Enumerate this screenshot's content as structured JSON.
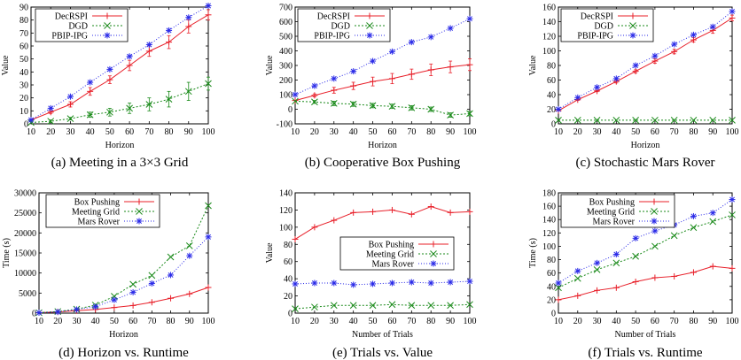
{
  "chart_data": [
    {
      "type": "line",
      "caption": "(a) Meeting in a 3×3 Grid",
      "xlabel": "Horizon",
      "ylabel": "Value",
      "xlim": [
        10,
        100
      ],
      "ylim": [
        0,
        90
      ],
      "xticks": [
        10,
        20,
        30,
        40,
        50,
        60,
        70,
        80,
        90,
        100
      ],
      "yticks": [
        0,
        10,
        20,
        30,
        40,
        50,
        60,
        70,
        80,
        90
      ],
      "grid": false,
      "legend": "top-left",
      "x": [
        10,
        20,
        30,
        40,
        50,
        60,
        70,
        80,
        90,
        100
      ],
      "series": [
        {
          "name": "DecRSPI",
          "color": "#e8202a",
          "marker": "plus",
          "dash": "",
          "values": [
            3,
            9,
            15,
            25,
            34,
            45,
            56,
            63,
            75,
            84
          ],
          "error": [
            0,
            1,
            2,
            3,
            3,
            4,
            4,
            5,
            5,
            4
          ]
        },
        {
          "name": "DGD",
          "color": "#1a8a1a",
          "marker": "x",
          "dash": "2,2",
          "values": [
            1,
            2,
            4,
            7,
            9,
            12,
            15,
            19,
            25,
            31
          ],
          "error": [
            0,
            1,
            1,
            2,
            3,
            4,
            5,
            6,
            7,
            5
          ]
        },
        {
          "name": "PBIP-IPG",
          "color": "#2a2ae8",
          "marker": "star",
          "dash": "1,2",
          "values": [
            3,
            12,
            21,
            32,
            42,
            52,
            61,
            72,
            82,
            91
          ],
          "error": [
            0,
            0,
            0,
            0,
            0,
            0,
            0,
            0,
            0,
            0
          ]
        }
      ]
    },
    {
      "type": "line",
      "caption": "(b) Cooperative Box Pushing",
      "xlabel": "Horizon",
      "ylabel": "Value",
      "xlim": [
        10,
        100
      ],
      "ylim": [
        -100,
        700
      ],
      "xticks": [
        10,
        20,
        30,
        40,
        50,
        60,
        70,
        80,
        90,
        100
      ],
      "yticks": [
        -100,
        0,
        100,
        200,
        300,
        400,
        500,
        600,
        700
      ],
      "grid": false,
      "legend": "top-left",
      "x": [
        10,
        20,
        30,
        40,
        50,
        60,
        70,
        80,
        90,
        100
      ],
      "series": [
        {
          "name": "DecRSPI",
          "color": "#e8202a",
          "marker": "plus",
          "dash": "",
          "values": [
            60,
            95,
            130,
            160,
            190,
            210,
            240,
            270,
            290,
            305
          ],
          "error": [
            0,
            10,
            20,
            25,
            30,
            35,
            35,
            40,
            40,
            40
          ]
        },
        {
          "name": "DGD",
          "color": "#1a8a1a",
          "marker": "x",
          "dash": "2,2",
          "values": [
            55,
            50,
            40,
            35,
            25,
            20,
            10,
            0,
            -40,
            -30
          ],
          "error": [
            0,
            10,
            15,
            15,
            15,
            15,
            15,
            15,
            15,
            15
          ]
        },
        {
          "name": "PBIP-IPG",
          "color": "#2a2ae8",
          "marker": "star",
          "dash": "1,2",
          "values": [
            100,
            160,
            210,
            260,
            330,
            395,
            460,
            495,
            555,
            620
          ],
          "error": [
            0,
            0,
            0,
            0,
            0,
            0,
            0,
            0,
            0,
            0
          ]
        }
      ]
    },
    {
      "type": "line",
      "caption": "(c) Stochastic Mars Rover",
      "xlabel": "Horizon",
      "ylabel": "Value",
      "xlim": [
        10,
        100
      ],
      "ylim": [
        0,
        160
      ],
      "xticks": [
        10,
        20,
        30,
        40,
        50,
        60,
        70,
        80,
        90,
        100
      ],
      "yticks": [
        0,
        20,
        40,
        60,
        80,
        100,
        120,
        140,
        160
      ],
      "grid": false,
      "legend": "top-left",
      "x": [
        10,
        20,
        30,
        40,
        50,
        60,
        70,
        80,
        90,
        100
      ],
      "series": [
        {
          "name": "DecRSPI",
          "color": "#e8202a",
          "marker": "plus",
          "dash": "",
          "values": [
            18,
            33,
            45,
            58,
            72,
            86,
            99,
            115,
            128,
            145
          ],
          "error": [
            0,
            1,
            1,
            2,
            2,
            3,
            3,
            3,
            4,
            4
          ]
        },
        {
          "name": "DGD",
          "color": "#1a8a1a",
          "marker": "x",
          "dash": "2,2",
          "values": [
            5,
            5,
            5,
            5,
            5,
            5,
            5,
            5,
            5,
            5
          ],
          "error": [
            0,
            0,
            0,
            0,
            0,
            0,
            0,
            0,
            0,
            0
          ]
        },
        {
          "name": "PBIP-IPG",
          "color": "#2a2ae8",
          "marker": "star",
          "dash": "1,2",
          "values": [
            20,
            36,
            50,
            62,
            80,
            93,
            109,
            122,
            133,
            154
          ],
          "error": [
            0,
            0,
            0,
            0,
            0,
            0,
            0,
            0,
            0,
            0
          ]
        }
      ]
    },
    {
      "type": "line",
      "caption": "(d) Horizon vs. Runtime",
      "xlabel": "Horizon",
      "ylabel": "Time (s)",
      "xlim": [
        10,
        100
      ],
      "ylim": [
        0,
        30000
      ],
      "xticks": [
        10,
        20,
        30,
        40,
        50,
        60,
        70,
        80,
        90,
        100
      ],
      "yticks": [
        0,
        5000,
        10000,
        15000,
        20000,
        25000,
        30000
      ],
      "grid": false,
      "legend": "top-left",
      "x": [
        10,
        20,
        30,
        40,
        50,
        60,
        70,
        80,
        90,
        100
      ],
      "series": [
        {
          "name": "Box Pushing",
          "color": "#e8202a",
          "marker": "plus",
          "dash": "",
          "values": [
            100,
            300,
            600,
            900,
            1400,
            1900,
            2700,
            3700,
            4800,
            6400
          ],
          "error": [
            0,
            0,
            0,
            0,
            0,
            0,
            0,
            0,
            0,
            0
          ]
        },
        {
          "name": "Meeting Grid",
          "color": "#1a8a1a",
          "marker": "x",
          "dash": "2,2",
          "values": [
            100,
            400,
            1000,
            2000,
            4200,
            7200,
            9400,
            14000,
            16800,
            26800
          ],
          "error": [
            0,
            0,
            0,
            0,
            0,
            0,
            0,
            0,
            0,
            0
          ]
        },
        {
          "name": "Mars Rover",
          "color": "#2a2ae8",
          "marker": "star",
          "dash": "1,2",
          "values": [
            100,
            300,
            900,
            1600,
            3300,
            5200,
            7400,
            9500,
            14300,
            19000
          ],
          "error": [
            0,
            0,
            0,
            0,
            0,
            0,
            0,
            0,
            0,
            0
          ]
        }
      ]
    },
    {
      "type": "line",
      "caption": "(e) Trials vs. Value",
      "xlabel": "Number of Trials",
      "ylabel": "Value",
      "xlim": [
        10,
        100
      ],
      "ylim": [
        0,
        140
      ],
      "xticks": [
        10,
        20,
        30,
        40,
        50,
        60,
        70,
        80,
        90,
        100
      ],
      "yticks": [
        0,
        20,
        40,
        60,
        80,
        100,
        120,
        140
      ],
      "grid": false,
      "legend": "center",
      "x": [
        10,
        20,
        30,
        40,
        50,
        60,
        70,
        80,
        90,
        100
      ],
      "series": [
        {
          "name": "Box Pushing",
          "color": "#e8202a",
          "marker": "plus",
          "dash": "",
          "values": [
            86,
            100,
            108,
            117,
            118,
            120,
            115,
            124,
            117,
            118
          ],
          "error": [
            0,
            0,
            0,
            0,
            0,
            0,
            0,
            0,
            0,
            0
          ]
        },
        {
          "name": "Meeting Grid",
          "color": "#1a8a1a",
          "marker": "x",
          "dash": "2,2",
          "values": [
            5,
            7,
            9,
            9,
            9,
            10,
            9,
            9,
            9,
            10
          ],
          "error": [
            0,
            0,
            0,
            0,
            0,
            0,
            0,
            0,
            0,
            0
          ]
        },
        {
          "name": "Mars Rover",
          "color": "#2a2ae8",
          "marker": "star",
          "dash": "1,2",
          "values": [
            34,
            35,
            35,
            33,
            34,
            35,
            36,
            35,
            36,
            37
          ],
          "error": [
            0,
            0,
            0,
            0,
            0,
            0,
            0,
            0,
            0,
            0
          ]
        }
      ]
    },
    {
      "type": "line",
      "caption": "(f) Trials vs. Runtime",
      "xlabel": "Number of Trials",
      "ylabel": "Time (s)",
      "xlim": [
        10,
        100
      ],
      "ylim": [
        0,
        180
      ],
      "xticks": [
        10,
        20,
        30,
        40,
        50,
        60,
        70,
        80,
        90,
        100
      ],
      "yticks": [
        0,
        20,
        40,
        60,
        80,
        100,
        120,
        140,
        160,
        180
      ],
      "grid": false,
      "legend": "top-left",
      "x": [
        10,
        20,
        30,
        40,
        50,
        60,
        70,
        80,
        90,
        100
      ],
      "series": [
        {
          "name": "Box Pushing",
          "color": "#e8202a",
          "marker": "plus",
          "dash": "",
          "values": [
            20,
            26,
            34,
            38,
            47,
            53,
            55,
            61,
            70,
            67
          ],
          "error": [
            0,
            0,
            0,
            0,
            0,
            0,
            0,
            0,
            0,
            0
          ]
        },
        {
          "name": "Meeting Grid",
          "color": "#1a8a1a",
          "marker": "x",
          "dash": "2,2",
          "values": [
            38,
            52,
            65,
            75,
            85,
            100,
            116,
            128,
            137,
            147
          ],
          "error": [
            0,
            0,
            0,
            0,
            0,
            0,
            0,
            0,
            0,
            0
          ]
        },
        {
          "name": "Mars Rover",
          "color": "#2a2ae8",
          "marker": "star",
          "dash": "1,2",
          "values": [
            45,
            63,
            75,
            88,
            112,
            123,
            132,
            145,
            150,
            170
          ],
          "error": [
            0,
            0,
            0,
            0,
            0,
            0,
            0,
            0,
            0,
            0
          ]
        }
      ]
    }
  ]
}
